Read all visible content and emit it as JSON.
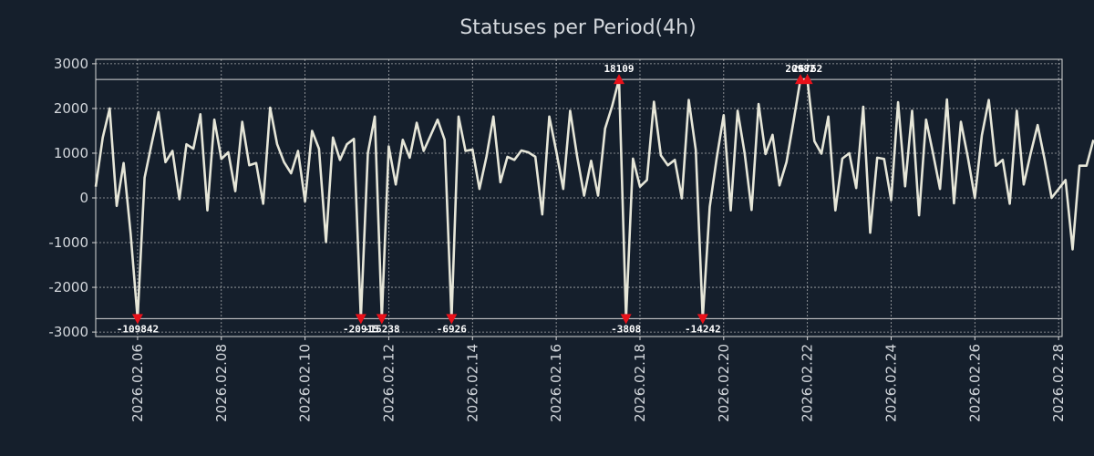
{
  "chart_data": {
    "type": "line",
    "title": "Statuses per Period(4h)",
    "xlabel": "",
    "ylabel": "",
    "ylim": [
      -3100,
      3100
    ],
    "xlim": [
      0,
      138.5
    ],
    "clip_band": [
      -2700,
      2650
    ],
    "grid": true,
    "colors": {
      "background": "#151f2c",
      "line": "#e6e6d8",
      "marker": "#e8111a",
      "grid": "#d8d8d8",
      "text": "#d4d8dd"
    },
    "yticks": [
      {
        "value": 3000,
        "label": "3000"
      },
      {
        "value": 2000,
        "label": "2000"
      },
      {
        "value": 1000,
        "label": "1000"
      },
      {
        "value": 0,
        "label": "0"
      },
      {
        "value": -1000,
        "label": "-1000"
      },
      {
        "value": -2000,
        "label": "-2000"
      },
      {
        "value": -3000,
        "label": "-3000"
      }
    ],
    "xticks": [
      {
        "index": 6,
        "label": "2026.02.06"
      },
      {
        "index": 18,
        "label": "2026.02.08"
      },
      {
        "index": 30,
        "label": "2026.02.10"
      },
      {
        "index": 42,
        "label": "2026.02.12"
      },
      {
        "index": 54,
        "label": "2026.02.14"
      },
      {
        "index": 66,
        "label": "2026.02.16"
      },
      {
        "index": 78,
        "label": "2026.02.18"
      },
      {
        "index": 90,
        "label": "2026.02.20"
      },
      {
        "index": 102,
        "label": "2026.02.22"
      },
      {
        "index": 114,
        "label": "2026.02.24"
      },
      {
        "index": 126,
        "label": "2026.02.26"
      },
      {
        "index": 138,
        "label": "2026.02.28"
      }
    ],
    "values": [
      250,
      1350,
      2000,
      -180,
      780,
      -800,
      -2700,
      450,
      1200,
      1920,
      800,
      1050,
      -30,
      1200,
      1100,
      1870,
      -280,
      1750,
      870,
      1020,
      150,
      1700,
      730,
      780,
      -130,
      2020,
      1200,
      800,
      550,
      1050,
      -80,
      1500,
      1100,
      -990,
      1350,
      850,
      1200,
      1320,
      -2700,
      1000,
      1820,
      -2700,
      1150,
      300,
      1300,
      900,
      1680,
      1050,
      1400,
      1750,
      1300,
      -2700,
      1820,
      1050,
      1080,
      200,
      920,
      1820,
      350,
      920,
      850,
      1060,
      1020,
      920,
      -370,
      1820,
      1050,
      200,
      1950,
      920,
      50,
      830,
      50,
      1550,
      2050,
      2650,
      -2700,
      880,
      250,
      400,
      2150,
      950,
      730,
      850,
      -10,
      2190,
      1070,
      -2700,
      -200,
      900,
      1850,
      -280,
      1950,
      1000,
      -270,
      2100,
      980,
      1410,
      280,
      800,
      1700,
      2650,
      2650,
      1270,
      990,
      1820,
      -280,
      880,
      1000,
      220,
      2040,
      -780,
      900,
      870,
      -50,
      2140,
      260,
      1950,
      -390,
      1750,
      1000,
      200,
      2200,
      -120,
      1700,
      900,
      0,
      1400,
      2190,
      720,
      850,
      -130,
      1950,
      300,
      1000,
      1630,
      850,
      0,
      200,
      400,
      -1150,
      720,
      720,
      1300
    ],
    "annotations": [
      {
        "index": 6,
        "value": -2700,
        "label": "-109842",
        "position": "below"
      },
      {
        "index": 38,
        "value": -2700,
        "label": "-20915",
        "position": "below"
      },
      {
        "index": 41,
        "value": -2700,
        "label": "-15238",
        "position": "below"
      },
      {
        "index": 51,
        "value": -2700,
        "label": "-6926",
        "position": "below"
      },
      {
        "index": 75,
        "value": 2650,
        "label": "18109",
        "position": "above"
      },
      {
        "index": 76,
        "value": -2700,
        "label": "-3808",
        "position": "below"
      },
      {
        "index": 87,
        "value": -2700,
        "label": "-14242",
        "position": "below"
      },
      {
        "index": 101,
        "value": 2650,
        "label": "20982",
        "position": "above"
      },
      {
        "index": 102,
        "value": 2650,
        "label": "26762",
        "position": "above"
      }
    ]
  }
}
